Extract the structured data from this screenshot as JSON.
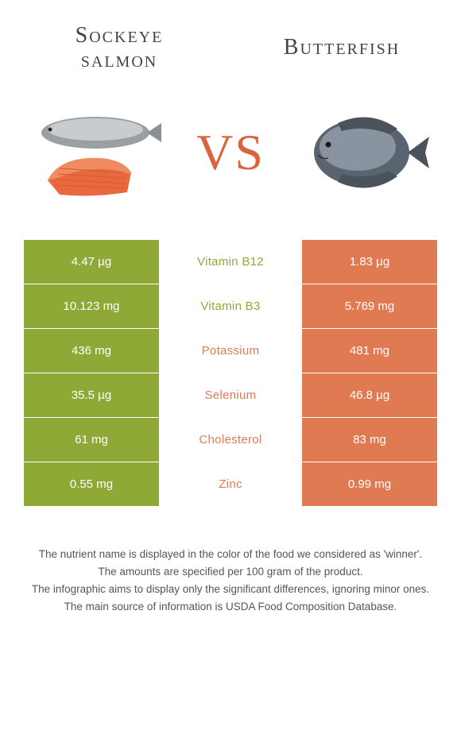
{
  "foods": {
    "left": {
      "name": "Sockeye salmon",
      "color": "#8ea935"
    },
    "right": {
      "name": "Butterfish",
      "color": "#e07a53"
    }
  },
  "vs_label": "VS",
  "vs_color": "#d9653f",
  "table": {
    "left_bg": "#8ea935",
    "right_bg": "#e07a53",
    "mid_bg": "#ffffff",
    "rows": [
      {
        "nutrient": "Vitamin B12",
        "left": "4.47 µg",
        "right": "1.83 µg",
        "winner": "left"
      },
      {
        "nutrient": "Vitamin B3",
        "left": "10.123 mg",
        "right": "5.769 mg",
        "winner": "left"
      },
      {
        "nutrient": "Potassium",
        "left": "436 mg",
        "right": "481 mg",
        "winner": "right"
      },
      {
        "nutrient": "Selenium",
        "left": "35.5 µg",
        "right": "46.8 µg",
        "winner": "right"
      },
      {
        "nutrient": "Cholesterol",
        "left": "61 mg",
        "right": "83 mg",
        "winner": "right"
      },
      {
        "nutrient": "Zinc",
        "left": "0.55 mg",
        "right": "0.99 mg",
        "winner": "right"
      }
    ]
  },
  "footnotes": [
    "The nutrient name is displayed in the color of the food we considered as 'winner'.",
    "The amounts are specified per 100 gram of the product.",
    "The infographic aims to display only the significant differences, ignoring minor ones.",
    "The main source of information is USDA Food Composition Database."
  ]
}
